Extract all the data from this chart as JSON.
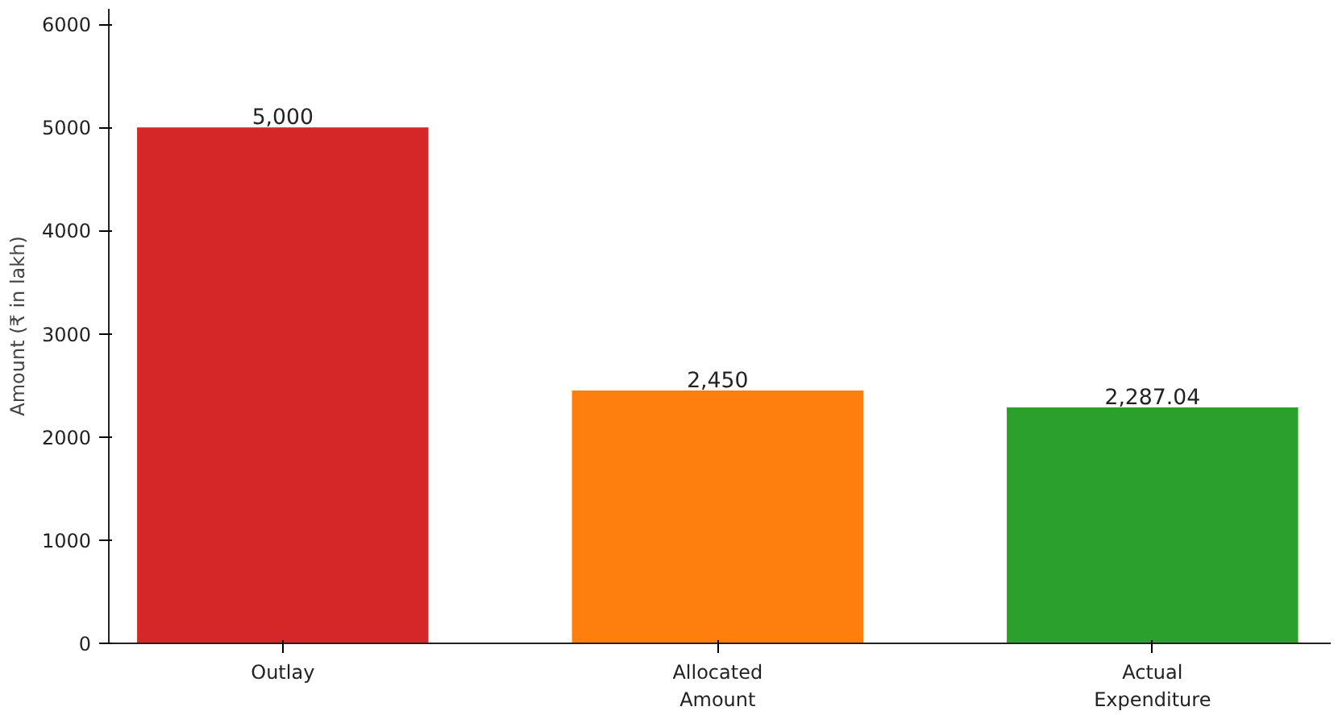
{
  "chart_data": {
    "type": "bar",
    "ylabel": "Amount (₹ in lakh)",
    "categories": [
      "Outlay",
      "Allocated\nAmount",
      "Actual\nExpenditure"
    ],
    "values": [
      5000,
      2450,
      2287.04
    ],
    "colors": [
      "#d62728",
      "#ff7f0e",
      "#2ca02c"
    ],
    "value_labels": [
      "5,000",
      "2,450",
      "2,287.04"
    ],
    "ylim": [
      0,
      6150
    ],
    "yticks": [
      0,
      1000,
      2000,
      3000,
      4000,
      5000,
      6000
    ],
    "grid": false
  }
}
